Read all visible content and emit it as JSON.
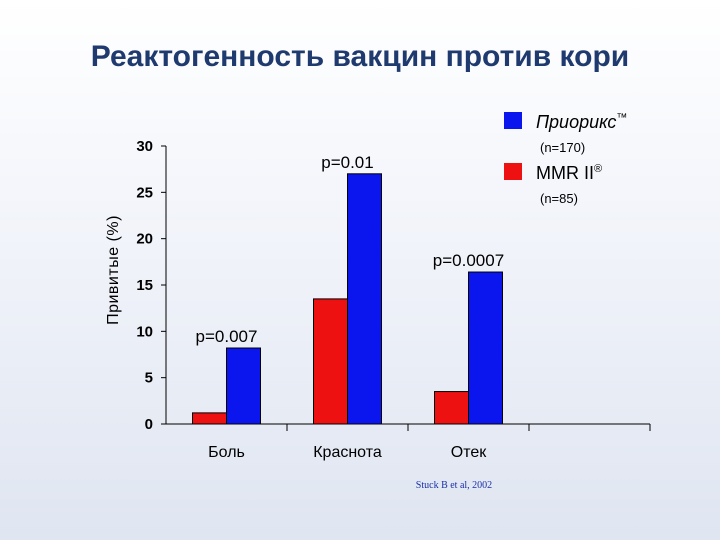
{
  "slide": {
    "title": "Реактогенность вакцин против кори",
    "source": "Stuck B et al, 2002"
  },
  "chart_data": {
    "type": "bar",
    "title": "",
    "xlabel": "",
    "ylabel": "Привитые (%)",
    "ylim": [
      0,
      30
    ],
    "yticks": [
      0,
      5,
      10,
      15,
      20,
      25,
      30
    ],
    "categories": [
      "Боль",
      "Краснота",
      "Отек"
    ],
    "series": [
      {
        "name": "MMR II®",
        "name_main": "MMR II",
        "name_mark": "®",
        "n_label": "(n=85)",
        "color": "#ee1111",
        "values": [
          1.2,
          13.5,
          3.5
        ]
      },
      {
        "name": "Приорикс™",
        "name_main": "Приорикс",
        "name_mark": "™",
        "n_label": "(n=170)",
        "color": "#0b16ee",
        "values": [
          8.2,
          27.0,
          16.4
        ]
      }
    ],
    "annotations": [
      "p=0.007",
      "p=0.01",
      "p=0.0007"
    ],
    "grid": false,
    "legend_position": "top-right"
  }
}
